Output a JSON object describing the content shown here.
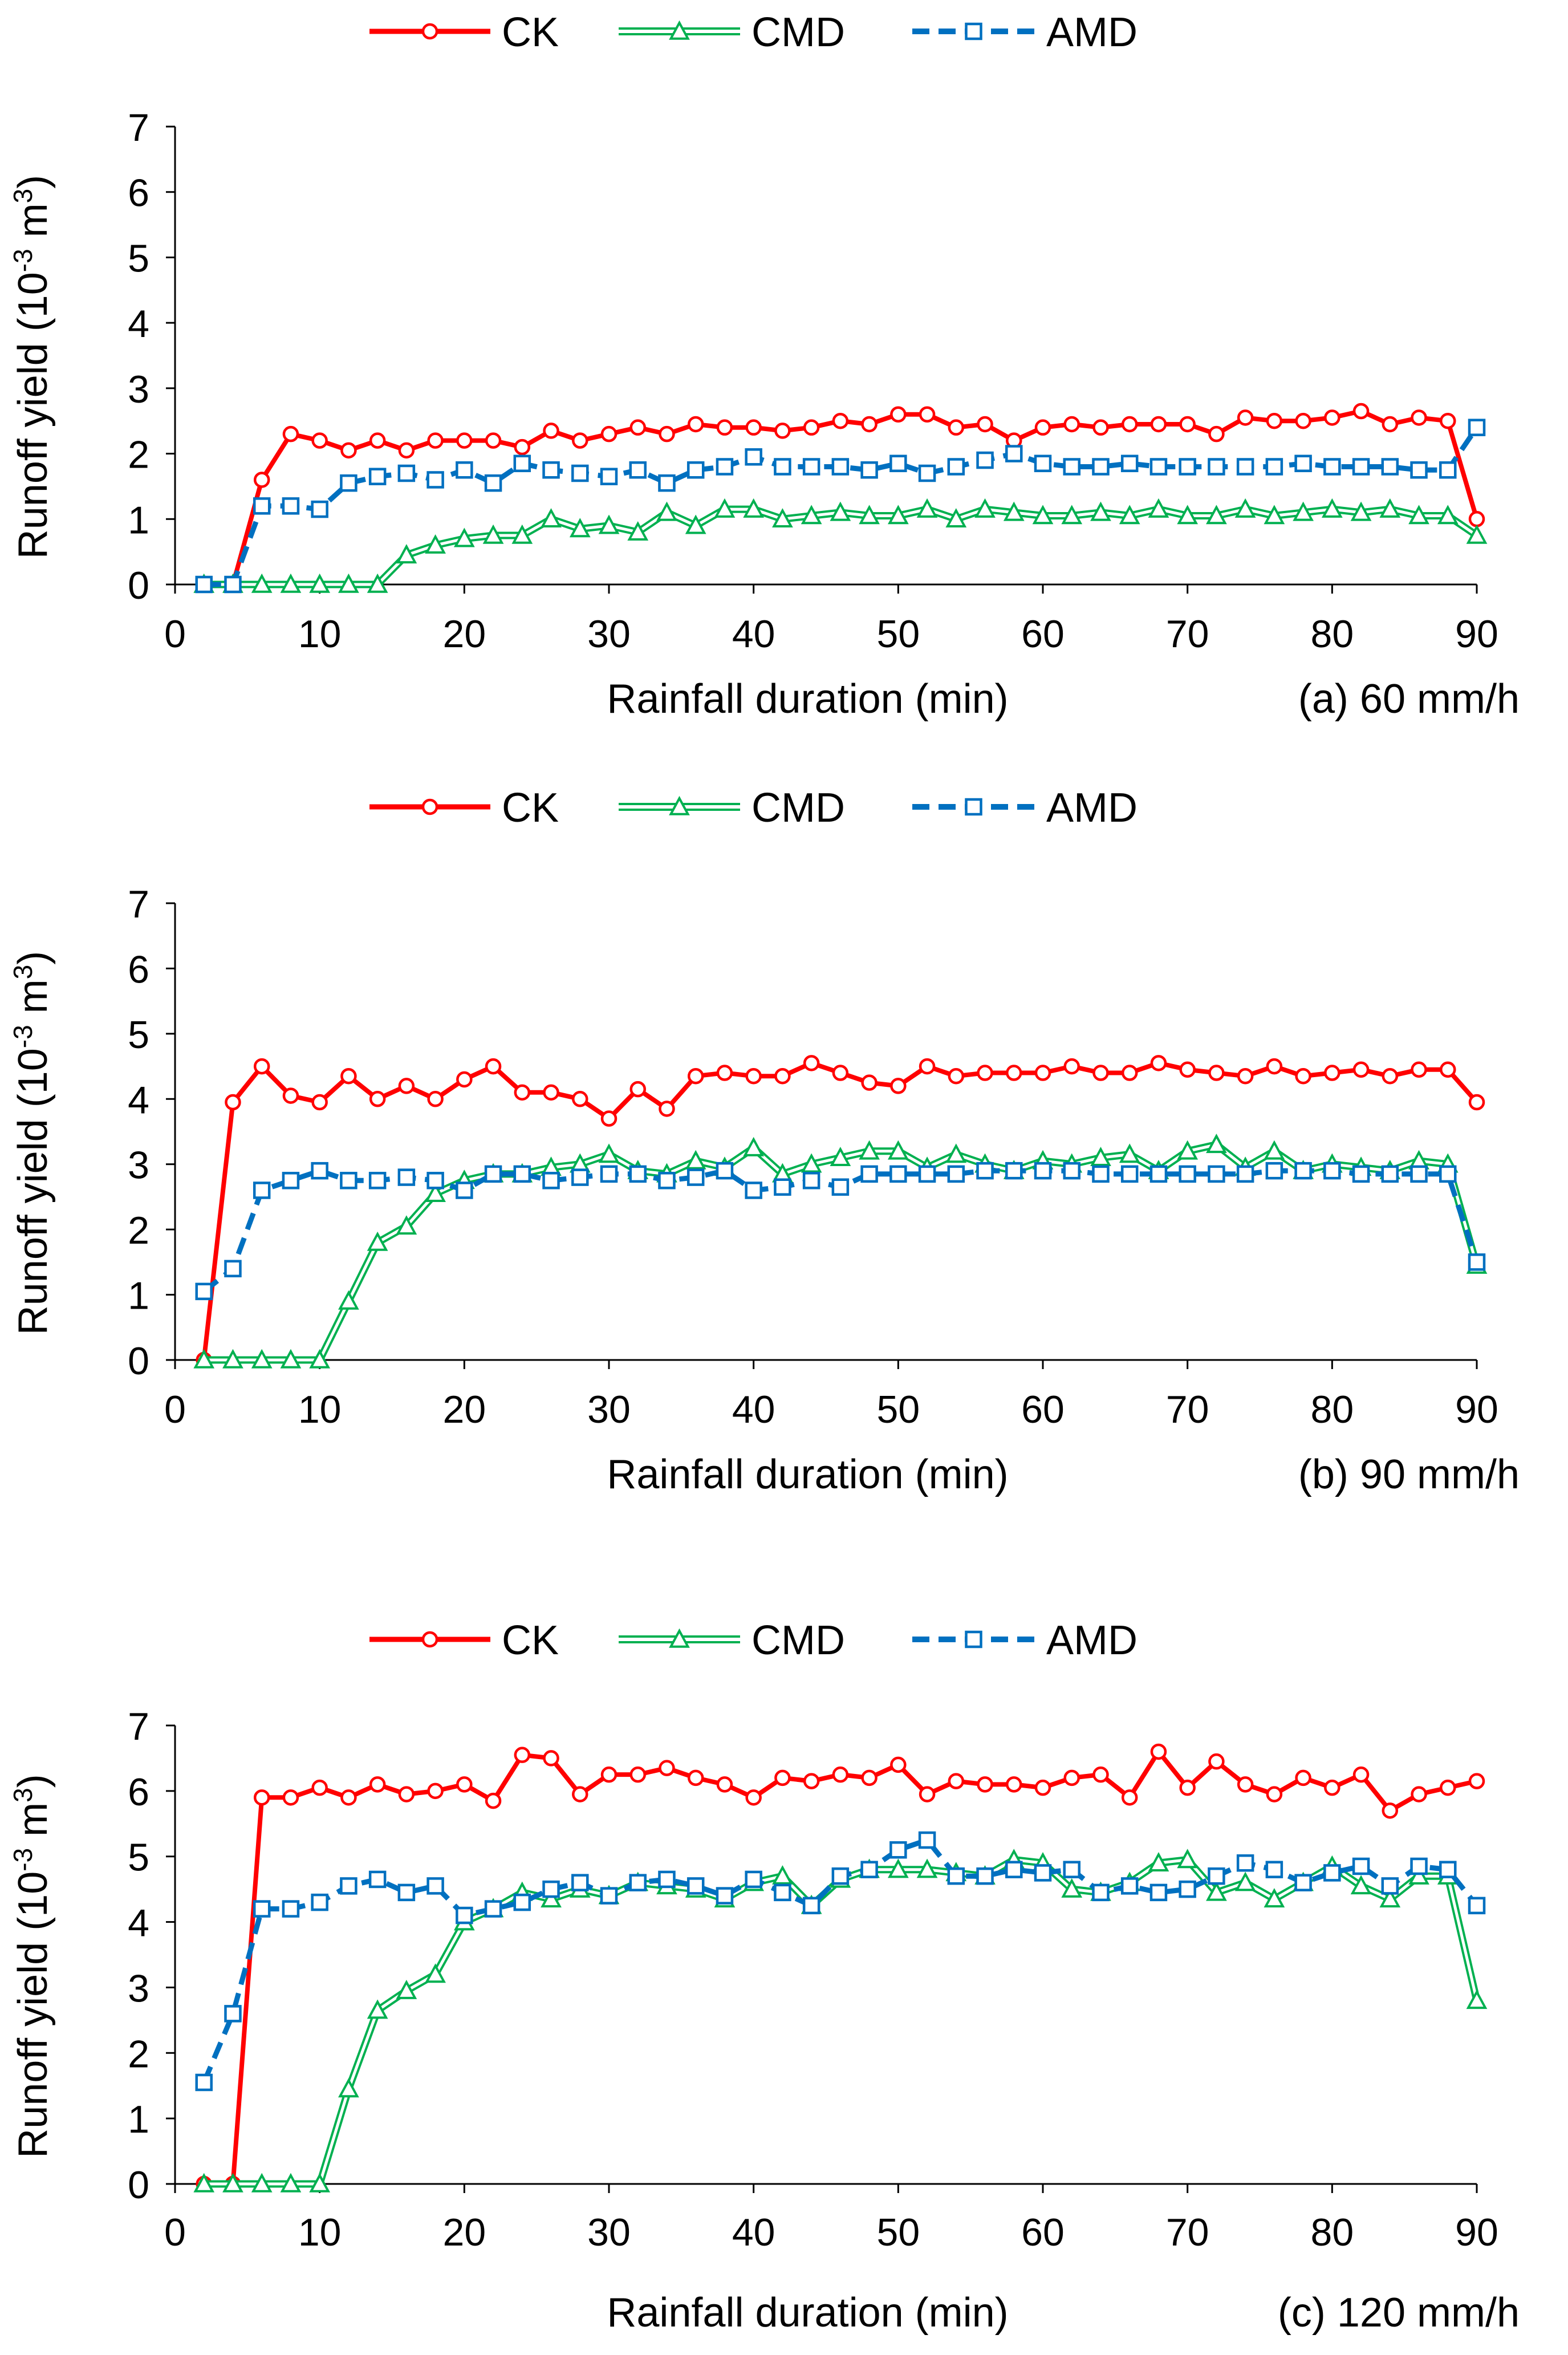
{
  "legend": [
    {
      "key": "ck",
      "label": "CK",
      "color": "#FF0000",
      "marker": "circle",
      "dash": "solid",
      "style": "line"
    },
    {
      "key": "cmd",
      "label": "CMD",
      "color": "#00B050",
      "marker": "triangle",
      "dash": "solid",
      "style": "double"
    },
    {
      "key": "amd",
      "label": "AMD",
      "color": "#0070C0",
      "marker": "square",
      "dash": "dashed",
      "style": "line"
    }
  ],
  "chart_data": [
    {
      "type": "line",
      "title": "",
      "caption": "(a) 60 mm/h",
      "xlabel": "Rainfall duration (min)",
      "ylabel_main": "Runoff yield (10",
      "ylabel_exp1": "-3",
      "ylabel_mid": " m",
      "ylabel_exp2": "3",
      "ylabel_end": ")",
      "xlim": [
        0,
        90
      ],
      "ylim": [
        0,
        7
      ],
      "xticks": [
        "0",
        "10",
        "20",
        "30",
        "40",
        "50",
        "60",
        "70",
        "80",
        "90"
      ],
      "yticks": [
        "0",
        "1",
        "2",
        "3",
        "4",
        "5",
        "6",
        "7"
      ],
      "x": [
        2,
        4,
        6,
        8,
        10,
        12,
        14,
        16,
        18,
        20,
        22,
        24,
        26,
        28,
        30,
        32,
        34,
        36,
        38,
        40,
        42,
        44,
        46,
        48,
        50,
        52,
        54,
        56,
        58,
        60,
        62,
        64,
        66,
        68,
        70,
        72,
        74,
        76,
        78,
        80,
        82,
        84,
        86,
        88,
        90
      ],
      "series": [
        {
          "name": "CK",
          "values": [
            0,
            0,
            1.6,
            2.3,
            2.2,
            2.05,
            2.2,
            2.05,
            2.2,
            2.2,
            2.2,
            2.1,
            2.35,
            2.2,
            2.3,
            2.4,
            2.3,
            2.45,
            2.4,
            2.4,
            2.35,
            2.4,
            2.5,
            2.45,
            2.6,
            2.6,
            2.4,
            2.45,
            2.2,
            2.4,
            2.45,
            2.4,
            2.45,
            2.45,
            2.45,
            2.3,
            2.55,
            2.5,
            2.5,
            2.55,
            2.65,
            2.45,
            2.55,
            2.5,
            1.0
          ]
        },
        {
          "name": "CMD",
          "values": [
            0,
            0,
            0,
            0,
            0,
            0,
            0,
            0.45,
            0.6,
            0.7,
            0.75,
            0.75,
            1.0,
            0.85,
            0.9,
            0.8,
            1.1,
            0.9,
            1.15,
            1.15,
            1.0,
            1.05,
            1.1,
            1.05,
            1.05,
            1.15,
            1.0,
            1.15,
            1.1,
            1.05,
            1.05,
            1.1,
            1.05,
            1.15,
            1.05,
            1.05,
            1.15,
            1.05,
            1.1,
            1.15,
            1.1,
            1.15,
            1.05,
            1.05,
            0.75
          ]
        },
        {
          "name": "AMD",
          "values": [
            0,
            0,
            1.2,
            1.2,
            1.15,
            1.55,
            1.65,
            1.7,
            1.6,
            1.75,
            1.55,
            1.85,
            1.75,
            1.7,
            1.65,
            1.75,
            1.55,
            1.75,
            1.8,
            1.95,
            1.8,
            1.8,
            1.8,
            1.75,
            1.85,
            1.7,
            1.8,
            1.9,
            2.0,
            1.85,
            1.8,
            1.8,
            1.85,
            1.8,
            1.8,
            1.8,
            1.8,
            1.8,
            1.85,
            1.8,
            1.8,
            1.8,
            1.75,
            1.75,
            2.4
          ]
        }
      ]
    },
    {
      "type": "line",
      "title": "",
      "caption": "(b) 90 mm/h",
      "xlabel": "Rainfall duration (min)",
      "ylabel_main": "Runoff yield (10",
      "ylabel_exp1": "-3",
      "ylabel_mid": " m",
      "ylabel_exp2": "3",
      "ylabel_end": ")",
      "xlim": [
        0,
        90
      ],
      "ylim": [
        0,
        7
      ],
      "xticks": [
        "0",
        "10",
        "20",
        "30",
        "40",
        "50",
        "60",
        "70",
        "80",
        "90"
      ],
      "yticks": [
        "0",
        "1",
        "2",
        "3",
        "4",
        "5",
        "6",
        "7"
      ],
      "x": [
        2,
        4,
        6,
        8,
        10,
        12,
        14,
        16,
        18,
        20,
        22,
        24,
        26,
        28,
        30,
        32,
        34,
        36,
        38,
        40,
        42,
        44,
        46,
        48,
        50,
        52,
        54,
        56,
        58,
        60,
        62,
        64,
        66,
        68,
        70,
        72,
        74,
        76,
        78,
        80,
        82,
        84,
        86,
        88,
        90
      ],
      "series": [
        {
          "name": "CK",
          "values": [
            0,
            3.95,
            4.5,
            4.05,
            3.95,
            4.35,
            4.0,
            4.2,
            4.0,
            4.3,
            4.5,
            4.1,
            4.1,
            4.0,
            3.7,
            4.15,
            3.85,
            4.35,
            4.4,
            4.35,
            4.35,
            4.55,
            4.4,
            4.25,
            4.2,
            4.5,
            4.35,
            4.4,
            4.4,
            4.4,
            4.5,
            4.4,
            4.4,
            4.55,
            4.45,
            4.4,
            4.35,
            4.5,
            4.35,
            4.4,
            4.45,
            4.35,
            4.45,
            4.45,
            3.95
          ]
        },
        {
          "name": "CMD",
          "values": [
            0,
            0,
            0,
            0,
            0,
            0.9,
            1.8,
            2.05,
            2.55,
            2.75,
            2.85,
            2.85,
            2.95,
            3.0,
            3.15,
            2.9,
            2.85,
            3.05,
            2.95,
            3.25,
            2.85,
            3.0,
            3.1,
            3.2,
            3.2,
            2.95,
            3.15,
            3.0,
            2.9,
            3.05,
            3.0,
            3.1,
            3.15,
            2.9,
            3.2,
            3.3,
            2.95,
            3.2,
            2.9,
            3.0,
            2.95,
            2.9,
            3.05,
            3.0,
            1.45
          ]
        },
        {
          "name": "AMD",
          "values": [
            1.05,
            1.4,
            2.6,
            2.75,
            2.9,
            2.75,
            2.75,
            2.8,
            2.75,
            2.6,
            2.85,
            2.85,
            2.75,
            2.8,
            2.85,
            2.85,
            2.75,
            2.8,
            2.9,
            2.6,
            2.65,
            2.75,
            2.65,
            2.85,
            2.85,
            2.85,
            2.85,
            2.9,
            2.9,
            2.9,
            2.9,
            2.85,
            2.85,
            2.85,
            2.85,
            2.85,
            2.85,
            2.9,
            2.9,
            2.9,
            2.85,
            2.85,
            2.85,
            2.85,
            1.5
          ]
        }
      ]
    },
    {
      "type": "line",
      "title": "",
      "caption": "(c) 120 mm/h",
      "xlabel": "Rainfall duration (min)",
      "ylabel_main": "Runoff yield (10",
      "ylabel_exp1": "-3",
      "ylabel_mid": " m",
      "ylabel_exp2": "3",
      "ylabel_end": ")",
      "xlim": [
        0,
        90
      ],
      "ylim": [
        0,
        7
      ],
      "xticks": [
        "0",
        "10",
        "20",
        "30",
        "40",
        "50",
        "60",
        "70",
        "80",
        "90"
      ],
      "yticks": [
        "0",
        "1",
        "2",
        "3",
        "4",
        "5",
        "6",
        "7"
      ],
      "x": [
        2,
        4,
        6,
        8,
        10,
        12,
        14,
        16,
        18,
        20,
        22,
        24,
        26,
        28,
        30,
        32,
        34,
        36,
        38,
        40,
        42,
        44,
        46,
        48,
        50,
        52,
        54,
        56,
        58,
        60,
        62,
        64,
        66,
        68,
        70,
        72,
        74,
        76,
        78,
        80,
        82,
        84,
        86,
        88,
        90
      ],
      "series": [
        {
          "name": "CK",
          "values": [
            0,
            0,
            5.9,
            5.9,
            6.05,
            5.9,
            6.1,
            5.95,
            6.0,
            6.1,
            5.85,
            6.55,
            6.5,
            5.95,
            6.25,
            6.25,
            6.35,
            6.2,
            6.1,
            5.9,
            6.2,
            6.15,
            6.25,
            6.2,
            6.4,
            5.95,
            6.15,
            6.1,
            6.1,
            6.05,
            6.2,
            6.25,
            5.9,
            6.6,
            6.05,
            6.45,
            6.1,
            5.95,
            6.2,
            6.05,
            6.25,
            5.7,
            5.95,
            6.05,
            6.15
          ]
        },
        {
          "name": "CMD",
          "values": [
            0,
            0,
            0,
            0,
            0,
            1.45,
            2.65,
            2.95,
            3.2,
            4.0,
            4.2,
            4.45,
            4.35,
            4.5,
            4.4,
            4.6,
            4.55,
            4.5,
            4.35,
            4.6,
            4.7,
            4.25,
            4.65,
            4.8,
            4.8,
            4.8,
            4.75,
            4.7,
            4.95,
            4.9,
            4.5,
            4.45,
            4.6,
            4.9,
            4.95,
            4.45,
            4.6,
            4.35,
            4.6,
            4.85,
            4.55,
            4.35,
            4.7,
            4.7,
            2.8
          ]
        },
        {
          "name": "AMD",
          "values": [
            1.55,
            2.6,
            4.2,
            4.2,
            4.3,
            4.55,
            4.65,
            4.45,
            4.55,
            4.1,
            4.2,
            4.3,
            4.5,
            4.6,
            4.4,
            4.6,
            4.65,
            4.55,
            4.4,
            4.65,
            4.45,
            4.25,
            4.7,
            4.8,
            5.1,
            5.25,
            4.7,
            4.7,
            4.8,
            4.75,
            4.8,
            4.45,
            4.55,
            4.45,
            4.5,
            4.7,
            4.9,
            4.8,
            4.6,
            4.75,
            4.85,
            4.55,
            4.85,
            4.8,
            4.25
          ]
        }
      ]
    }
  ]
}
